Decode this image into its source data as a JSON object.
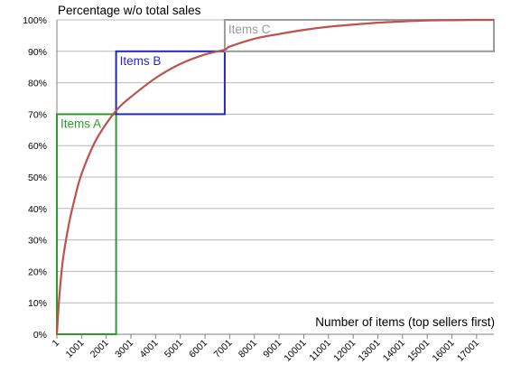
{
  "chart_data": {
    "type": "line",
    "title": "Percentage w/o total sales",
    "xlabel": "Number of items (top sellers first)",
    "ylabel": "",
    "xlim": [
      1,
      17701
    ],
    "ylim": [
      0,
      100
    ],
    "y_ticks": [
      "0%",
      "10%",
      "20%",
      "30%",
      "40%",
      "50%",
      "60%",
      "70%",
      "80%",
      "90%",
      "100%"
    ],
    "x_ticks": [
      "1",
      "1001",
      "2001",
      "3001",
      "4001",
      "5001",
      "6001",
      "7001",
      "8001",
      "9001",
      "10001",
      "11001",
      "12001",
      "13001",
      "14001",
      "15001",
      "16001",
      "17001"
    ],
    "grid": "horizontal",
    "series": [
      {
        "color": "#c0504d",
        "x": [
          1,
          100,
          250,
          500,
          750,
          1001,
          1500,
          2001,
          2500,
          3001,
          4001,
          5001,
          6001,
          6800,
          7001,
          8001,
          9001,
          10001,
          11001,
          12001,
          13001,
          14001,
          15001,
          16001,
          17001,
          17701
        ],
        "y": [
          0,
          12,
          24,
          35.5,
          44,
          51,
          60.5,
          67,
          72,
          75.5,
          81.5,
          86,
          89,
          90.5,
          91.5,
          94,
          95.5,
          96.8,
          97.8,
          98.5,
          99.1,
          99.5,
          99.8,
          99.9,
          100,
          100
        ]
      }
    ],
    "annotations": [
      {
        "label": "Items A",
        "color": "#2e9a2e",
        "x_range": [
          1,
          2400
        ],
        "y_range": [
          0,
          70
        ]
      },
      {
        "label": "Items B",
        "color": "#2626c4",
        "x_range": [
          2400,
          6800
        ],
        "y_range": [
          70,
          90
        ]
      },
      {
        "label": "Items C",
        "color": "#9a9a9a",
        "x_range": [
          6800,
          17701
        ],
        "y_range": [
          90,
          100
        ]
      }
    ]
  }
}
